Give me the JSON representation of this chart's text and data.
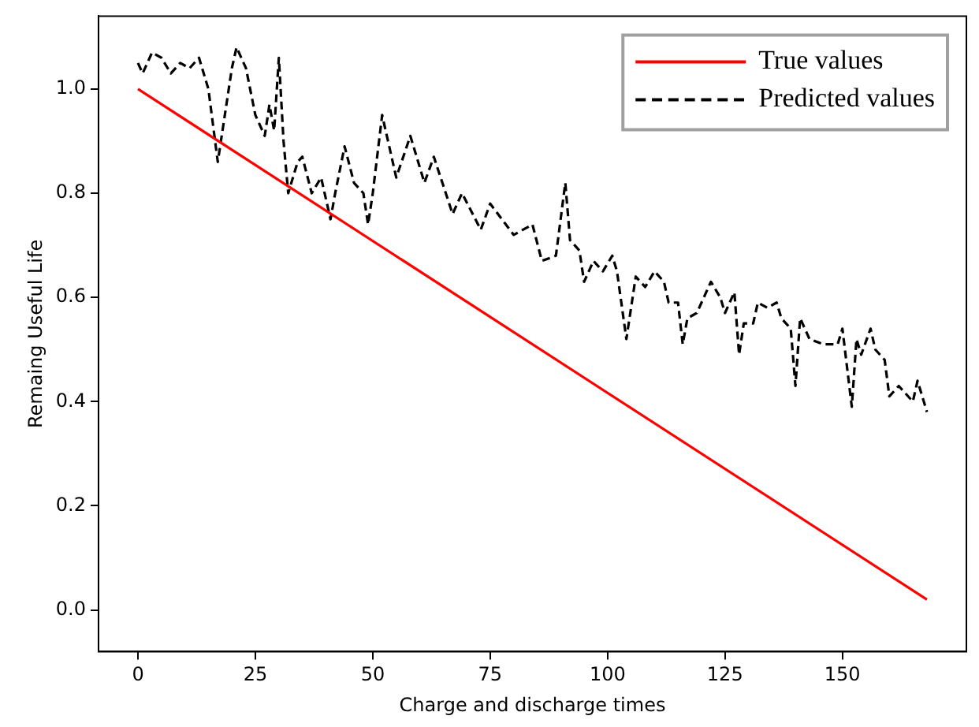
{
  "chart_data": {
    "type": "line",
    "xlabel": "Charge and discharge times",
    "ylabel": "Remaing Useful Life",
    "xlim": [
      -8.4,
      176.4
    ],
    "xticks": [
      0,
      25,
      50,
      75,
      100,
      125,
      150
    ],
    "ylim": [
      -0.08,
      1.14
    ],
    "yticks": [
      {
        "value": 0,
        "label": "0.0"
      },
      0.2,
      0.4,
      0.6,
      0.8,
      {
        "value": 1,
        "label": "1.0"
      }
    ],
    "legend": "top right",
    "grid": false,
    "marker": "none",
    "series": [
      {
        "name": "True values",
        "color": "#ff0000",
        "line_style": "solid",
        "x": [
          0,
          168
        ],
        "values": [
          1.0,
          0.02
        ]
      },
      {
        "name": "Predicted values",
        "color": "#000000",
        "line_style": "dashed",
        "x": [
          0,
          1,
          3,
          5,
          7,
          9,
          11,
          13,
          15,
          17,
          18,
          20,
          21,
          23,
          25,
          27,
          28,
          29,
          30,
          31,
          32,
          34,
          35,
          37,
          39,
          41,
          42,
          44,
          46,
          48,
          49,
          50,
          52,
          55,
          58,
          61,
          63,
          67,
          69,
          73,
          75,
          80,
          84,
          86,
          89,
          91,
          92,
          94,
          95,
          97,
          99,
          101,
          102,
          104,
          106,
          108,
          110,
          112,
          113,
          115,
          116,
          117,
          119,
          120,
          122,
          124,
          125,
          127,
          128,
          129,
          131,
          132,
          134,
          136,
          137,
          139,
          140,
          141,
          143,
          146,
          149,
          150,
          152,
          153,
          154,
          156,
          157,
          159,
          160,
          162,
          165,
          166,
          168
        ],
        "values": [
          1.05,
          1.03,
          1.07,
          1.06,
          1.03,
          1.05,
          1.04,
          1.06,
          1.0,
          0.86,
          0.92,
          1.04,
          1.08,
          1.04,
          0.95,
          0.91,
          0.97,
          0.92,
          1.06,
          0.9,
          0.8,
          0.86,
          0.87,
          0.8,
          0.83,
          0.75,
          0.8,
          0.89,
          0.82,
          0.8,
          0.74,
          0.8,
          0.95,
          0.83,
          0.91,
          0.82,
          0.87,
          0.76,
          0.8,
          0.73,
          0.78,
          0.72,
          0.74,
          0.67,
          0.68,
          0.82,
          0.71,
          0.69,
          0.63,
          0.67,
          0.65,
          0.68,
          0.65,
          0.52,
          0.64,
          0.62,
          0.65,
          0.63,
          0.59,
          0.59,
          0.51,
          0.56,
          0.57,
          0.59,
          0.63,
          0.6,
          0.57,
          0.61,
          0.49,
          0.55,
          0.55,
          0.59,
          0.58,
          0.59,
          0.56,
          0.54,
          0.43,
          0.56,
          0.52,
          0.51,
          0.51,
          0.54,
          0.39,
          0.52,
          0.49,
          0.54,
          0.5,
          0.48,
          0.41,
          0.43,
          0.4,
          0.44,
          0.38
        ]
      }
    ]
  }
}
